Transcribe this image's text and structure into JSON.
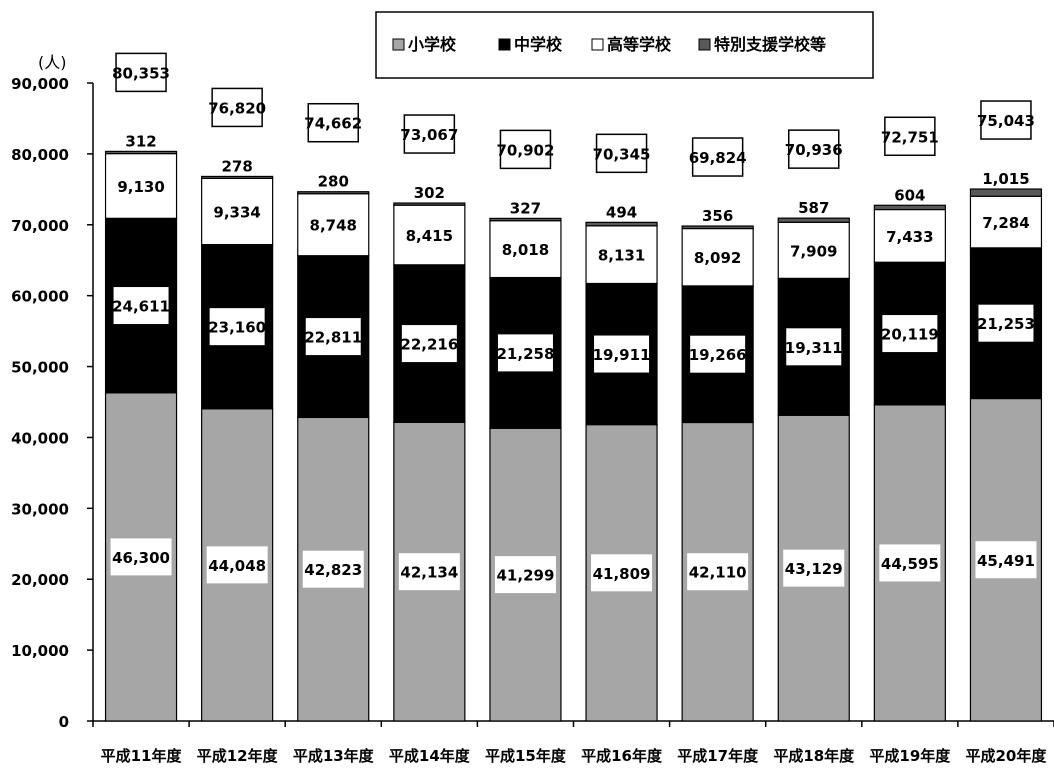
{
  "chart_data": {
    "type": "bar",
    "stacked": true,
    "ylabel": "(人)",
    "ylim": [
      0,
      90000
    ],
    "yticks": [
      "0",
      "10,000",
      "20,000",
      "30,000",
      "40,000",
      "50,000",
      "60,000",
      "70,000",
      "80,000",
      "90,000"
    ],
    "grid": false,
    "legend_position": "top",
    "categories": [
      "平成11年度",
      "平成12年度",
      "平成13年度",
      "平成14年度",
      "平成15年度",
      "平成16年度",
      "平成17年度",
      "平成18年度",
      "平成19年度",
      "平成20年度"
    ],
    "series": [
      {
        "name": "小学校",
        "color": "#a6a6a6",
        "values": [
          46300,
          44048,
          42823,
          42134,
          41299,
          41809,
          42110,
          43129,
          44595,
          45491
        ],
        "labels": [
          "46,300",
          "44,048",
          "42,823",
          "42,134",
          "41,299",
          "41,809",
          "42,110",
          "43,129",
          "44,595",
          "45,491"
        ]
      },
      {
        "name": "中学校",
        "color": "#000000",
        "values": [
          24611,
          23160,
          22811,
          22216,
          21258,
          19911,
          19266,
          19311,
          20119,
          21253
        ],
        "labels": [
          "24,611",
          "23,160",
          "22,811",
          "22,216",
          "21,258",
          "19,911",
          "19,266",
          "19,311",
          "20,119",
          "21,253"
        ]
      },
      {
        "name": "高等学校",
        "color": "#ffffff",
        "values": [
          9130,
          9334,
          8748,
          8415,
          8018,
          8131,
          8092,
          7909,
          7433,
          7284
        ],
        "labels": [
          "9,130",
          "9,334",
          "8,748",
          "8,415",
          "8,018",
          "8,131",
          "8,092",
          "7,909",
          "7,433",
          "7,284"
        ]
      },
      {
        "name": "特別支援学校等",
        "color": "#595959",
        "values": [
          312,
          278,
          280,
          302,
          327,
          494,
          356,
          587,
          604,
          1015
        ],
        "labels": [
          "312",
          "278",
          "280",
          "302",
          "327",
          "494",
          "356",
          "587",
          "604",
          "1,015"
        ]
      }
    ],
    "totals": [
      80353,
      76820,
      74662,
      73067,
      70902,
      70345,
      69824,
      70936,
      72751,
      75043
    ],
    "total_labels": [
      "80,353",
      "76,820",
      "74,662",
      "73,067",
      "70,902",
      "70,345",
      "69,824",
      "70,936",
      "72,751",
      "75,043"
    ]
  }
}
